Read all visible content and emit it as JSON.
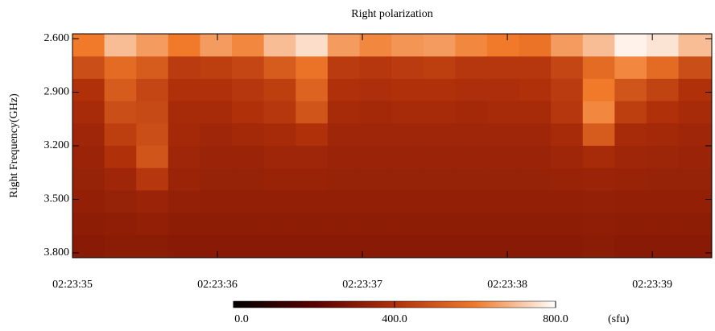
{
  "chart_data": {
    "type": "heatmap",
    "title": "Right polarization",
    "y_label": "Right Frequency(GHz)",
    "colorbar_unit": "(sfu)",
    "x": [
      35.11,
      35.33,
      35.55,
      35.77,
      35.99,
      36.21,
      36.43,
      36.65,
      36.87,
      37.09,
      37.31,
      37.53,
      37.75,
      37.97,
      38.19,
      38.41,
      38.63,
      38.85,
      39.07,
      39.29
    ],
    "y": [
      2.64,
      2.76,
      2.89,
      3.01,
      3.14,
      3.26,
      3.39,
      3.51,
      3.64,
      3.76
    ],
    "z": [
      [
        600,
        700,
        650,
        600,
        650,
        620,
        700,
        750,
        650,
        620,
        640,
        650,
        620,
        600,
        580,
        650,
        700,
        780,
        760,
        700
      ],
      [
        480,
        560,
        520,
        430,
        440,
        460,
        520,
        580,
        430,
        420,
        430,
        440,
        420,
        420,
        420,
        460,
        560,
        620,
        560,
        480
      ],
      [
        400,
        520,
        460,
        400,
        400,
        420,
        440,
        540,
        400,
        390,
        400,
        400,
        390,
        390,
        400,
        430,
        600,
        500,
        450,
        400
      ],
      [
        380,
        480,
        470,
        380,
        380,
        400,
        420,
        500,
        380,
        370,
        380,
        380,
        370,
        380,
        380,
        420,
        620,
        440,
        400,
        380
      ],
      [
        360,
        440,
        480,
        370,
        360,
        370,
        380,
        400,
        360,
        360,
        360,
        360,
        360,
        360,
        360,
        380,
        520,
        380,
        370,
        360
      ],
      [
        350,
        400,
        500,
        360,
        350,
        350,
        360,
        360,
        350,
        350,
        350,
        350,
        350,
        350,
        350,
        360,
        380,
        360,
        355,
        350
      ],
      [
        340,
        360,
        420,
        350,
        340,
        340,
        345,
        345,
        340,
        340,
        340,
        340,
        340,
        340,
        340,
        345,
        350,
        345,
        340,
        340
      ],
      [
        330,
        340,
        350,
        335,
        330,
        330,
        330,
        330,
        330,
        330,
        330,
        330,
        330,
        330,
        330,
        330,
        335,
        330,
        330,
        330
      ],
      [
        320,
        325,
        330,
        320,
        320,
        320,
        320,
        320,
        320,
        320,
        320,
        320,
        320,
        320,
        320,
        320,
        325,
        320,
        320,
        320
      ],
      [
        310,
        315,
        315,
        310,
        310,
        310,
        310,
        310,
        310,
        310,
        310,
        310,
        310,
        310,
        310,
        310,
        315,
        310,
        310,
        310
      ]
    ],
    "xlim": [
      35,
      39.41
    ],
    "xticks": [
      {
        "value": 35,
        "label": "02:23:35"
      },
      {
        "value": 36,
        "label": "02:23:36"
      },
      {
        "value": 37,
        "label": "02:23:37"
      },
      {
        "value": 38,
        "label": "02:23:38"
      },
      {
        "value": 39,
        "label": "02:23:39"
      }
    ],
    "ylim": [
      2.573,
      3.827
    ],
    "yticks": [
      {
        "value": 2.6,
        "label": "2.600"
      },
      {
        "value": 2.9,
        "label": "2.900"
      },
      {
        "value": 3.2,
        "label": "3.200"
      },
      {
        "value": 3.5,
        "label": "3.500"
      },
      {
        "value": 3.8,
        "label": "3.800"
      }
    ],
    "y_inverted": true,
    "zlim": [
      0,
      800
    ],
    "zticks": [
      {
        "value": 0,
        "label": "0.0"
      },
      {
        "value": 400,
        "label": "400.0"
      },
      {
        "value": 800,
        "label": "800.0"
      }
    ],
    "colorscale": [
      "#000000",
      "#5a0000",
      "#b0300a",
      "#f07a2a",
      "#ffffff"
    ]
  }
}
